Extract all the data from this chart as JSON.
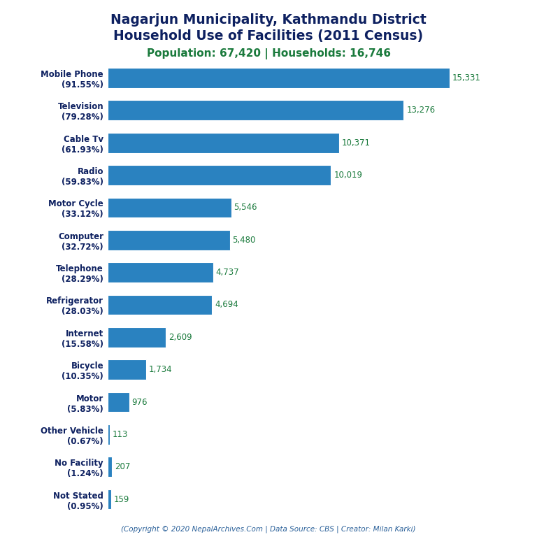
{
  "title_line1": "Nagarjun Municipality, Kathmandu District",
  "title_line2": "Household Use of Facilities (2011 Census)",
  "subtitle": "Population: 67,420 | Households: 16,746",
  "title_color": "#0d2060",
  "subtitle_color": "#1a7a3c",
  "footer": "(Copyright © 2020 NepalArchives.Com | Data Source: CBS | Creator: Milan Karki)",
  "footer_color": "#2a6099",
  "categories": [
    "Mobile Phone\n(91.55%)",
    "Television\n(79.28%)",
    "Cable Tv\n(61.93%)",
    "Radio\n(59.83%)",
    "Motor Cycle\n(33.12%)",
    "Computer\n(32.72%)",
    "Telephone\n(28.29%)",
    "Refrigerator\n(28.03%)",
    "Internet\n(15.58%)",
    "Bicycle\n(10.35%)",
    "Motor\n(5.83%)",
    "Other Vehicle\n(0.67%)",
    "No Facility\n(1.24%)",
    "Not Stated\n(0.95%)"
  ],
  "values": [
    15331,
    13276,
    10371,
    10019,
    5546,
    5480,
    4737,
    4694,
    2609,
    1734,
    976,
    113,
    207,
    159
  ],
  "value_labels": [
    "15,331",
    "13,276",
    "10,371",
    "10,019",
    "5,546",
    "5,480",
    "4,737",
    "4,694",
    "2,609",
    "1,734",
    "976",
    "113",
    "207",
    "159"
  ],
  "bar_color": "#2a82c0",
  "value_color": "#1a7a3c",
  "background_color": "#ffffff",
  "label_color": "#0d2060",
  "figsize": [
    7.68,
    7.68
  ],
  "dpi": 100
}
